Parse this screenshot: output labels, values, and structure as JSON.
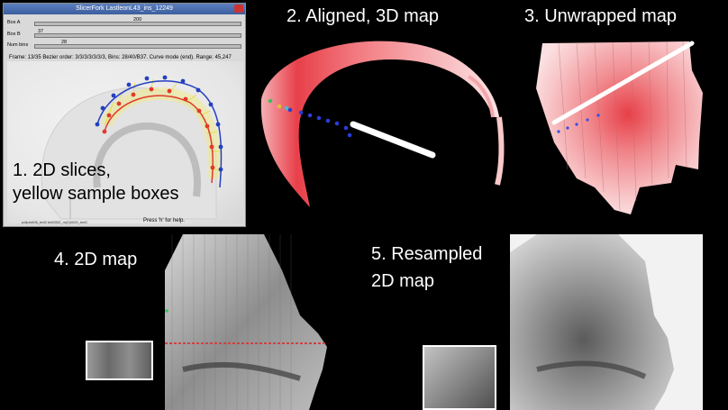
{
  "panel1": {
    "window_title": "SlicerFork LastleonL43_ins_12249",
    "sliders": [
      {
        "label": "Box A",
        "value": "200"
      },
      {
        "label": "Box B",
        "value": "37"
      },
      {
        "label": "Num bins",
        "value": "28"
      }
    ],
    "status": "Frame: 13/35  Bezier order: 3/3/3/3/3/3/3, Bins: 28/40/B37. Curve mode (end). Range: 45,247",
    "help": "Press 'h' for help.",
    "footer": "pdfprint06_tmt0 tmt0002_m(0)0000_tmt0",
    "caption_line1": "1. 2D slices,",
    "caption_line2": "yellow sample boxes"
  },
  "panel2": {
    "caption": "2. Aligned, 3D map"
  },
  "panel3": {
    "caption": "3. Unwrapped map"
  },
  "panel4": {
    "caption": "4. 2D map"
  },
  "panel5": {
    "caption_line1": "5. Resampled",
    "caption_line2": "2D map"
  },
  "colors": {
    "background": "#000000",
    "heat": "#e8404a",
    "track_line": "#ffffff",
    "label": "#ffffff"
  }
}
